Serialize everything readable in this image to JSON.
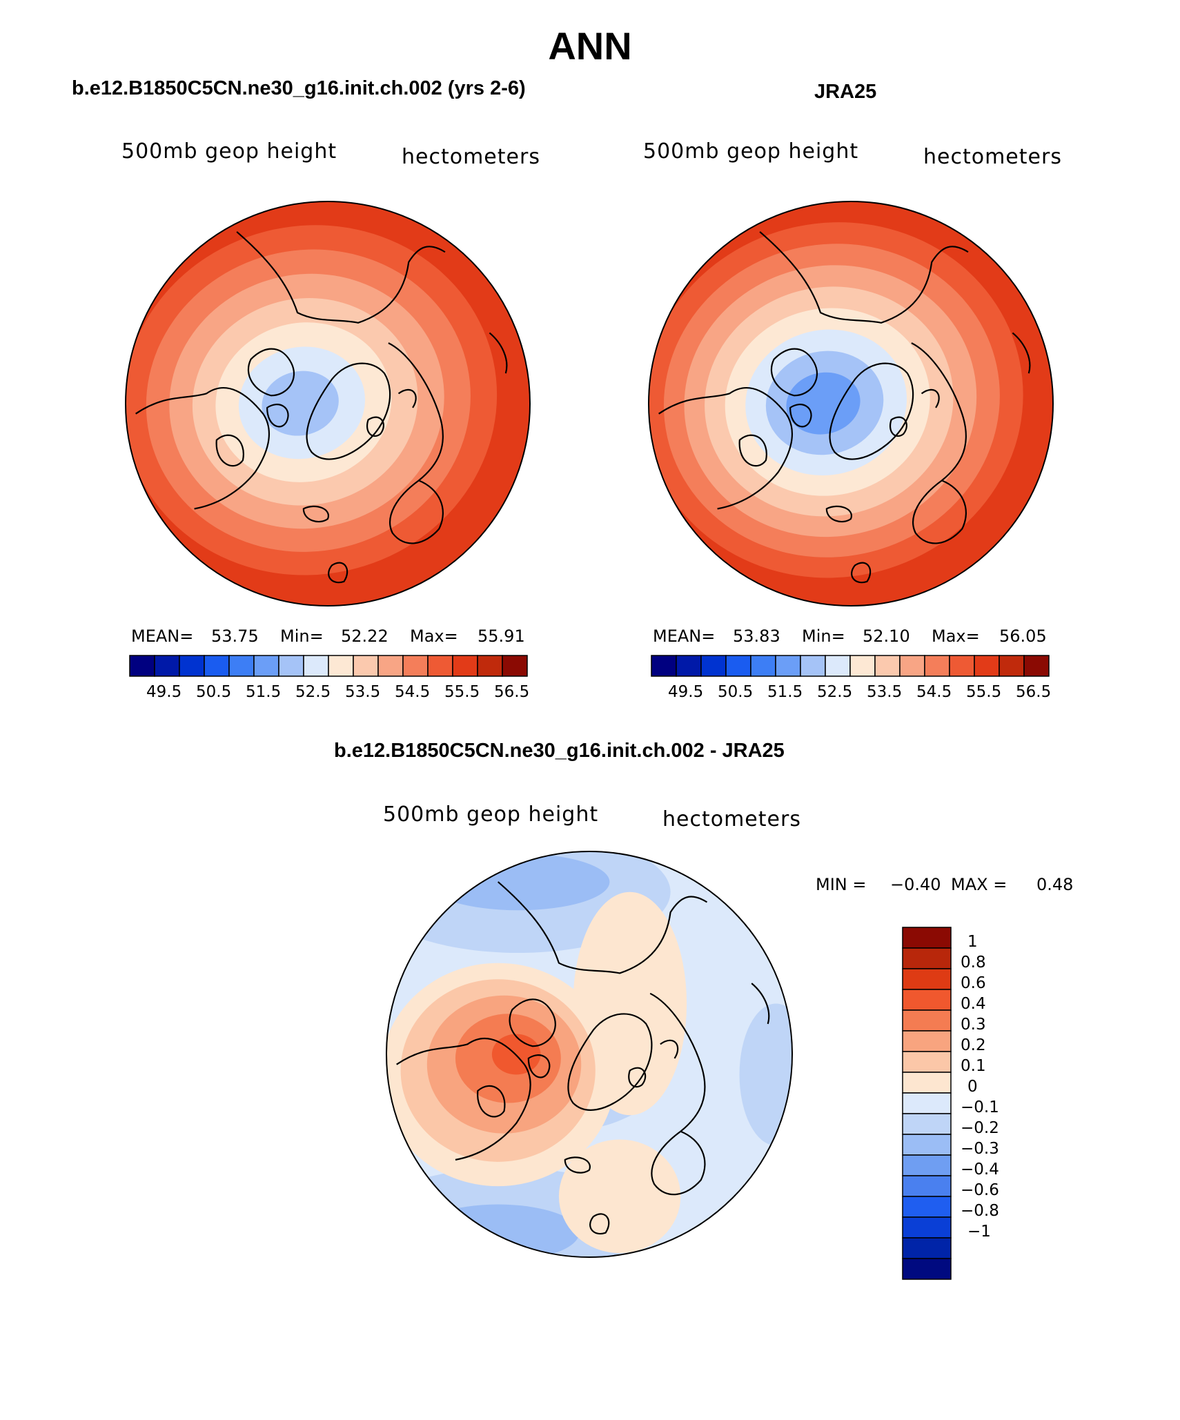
{
  "title": "ANN",
  "chart_data": [
    {
      "type": "heatmap",
      "title": "b.e12.B1850C5CN.ne30_g16.init.ch.002 (yrs 2-6)",
      "left_label": "500mb geop height",
      "right_label": "hectometers",
      "stats": {
        "mean_label": "MEAN=",
        "mean": "53.75",
        "min_label": "Min=",
        "min": "52.22",
        "max_label": "Max=",
        "max": "55.91"
      },
      "colorbar_ticks": [
        "49.5",
        "50.5",
        "51.5",
        "52.5",
        "53.5",
        "54.5",
        "55.5",
        "56.5"
      ],
      "colors": [
        "#000080",
        "#0019a8",
        "#0033d0",
        "#1a5cf0",
        "#3d7ef5",
        "#6b9ef7",
        "#a5c3f7",
        "#dce9fb",
        "#fde8d4",
        "#fbc9ae",
        "#f8a585",
        "#f47e5a",
        "#ee5a34",
        "#e23b18",
        "#c02a0c",
        "#8b0a03"
      ],
      "band_values": [
        55.5,
        55.0,
        54.5,
        54.0,
        53.5,
        53.0,
        52.5
      ]
    },
    {
      "type": "heatmap",
      "title": "JRA25",
      "left_label": "500mb geop height",
      "right_label": "hectometers",
      "stats": {
        "mean_label": "MEAN=",
        "mean": "53.83",
        "min_label": "Min=",
        "min": "52.10",
        "max_label": "Max=",
        "max": "56.05"
      },
      "colorbar_ticks": [
        "49.5",
        "50.5",
        "51.5",
        "52.5",
        "53.5",
        "54.5",
        "55.5",
        "56.5"
      ],
      "colors": [
        "#000080",
        "#0019a8",
        "#0033d0",
        "#1a5cf0",
        "#3d7ef5",
        "#6b9ef7",
        "#a5c3f7",
        "#dce9fb",
        "#fde8d4",
        "#fbc9ae",
        "#f8a585",
        "#f47e5a",
        "#ee5a34",
        "#e23b18",
        "#c02a0c",
        "#8b0a03"
      ],
      "band_values": [
        55.5,
        55.0,
        54.5,
        54.0,
        53.5,
        53.0,
        52.5,
        52.0
      ]
    },
    {
      "type": "heatmap",
      "title": "b.e12.B1850C5CN.ne30_g16.init.ch.002 - JRA25",
      "left_label": "500mb geop height",
      "right_label": "hectometers",
      "stats": {
        "min_label": "MIN =",
        "min": "−0.40",
        "max_label": "MAX =",
        "max": "0.48"
      },
      "colorbar_ticks": [
        "1",
        "0.8",
        "0.6",
        "0.4",
        "0.3",
        "0.2",
        "0.1",
        "0",
        "−0.1",
        "−0.2",
        "−0.3",
        "−0.4",
        "−0.6",
        "−0.8",
        "−1"
      ],
      "colors": [
        "#8b0a03",
        "#b8270b",
        "#de3b14",
        "#f0582e",
        "#f47c52",
        "#f8a47f",
        "#fbc7a8",
        "#fde6d0",
        "#dce9fb",
        "#bfd5f7",
        "#9bbdf5",
        "#6f9ef2",
        "#4a80ef",
        "#1f5ef0",
        "#0a3fd6",
        "#0024a8",
        "#000a80"
      ]
    }
  ],
  "map_fills": {
    "c1": {
      "bg": "#ee5a34"
    },
    "c2": {
      "bg": "#ee5a34"
    },
    "d": {
      "bg": "#dce9fb"
    }
  },
  "coast_color": "#000000"
}
